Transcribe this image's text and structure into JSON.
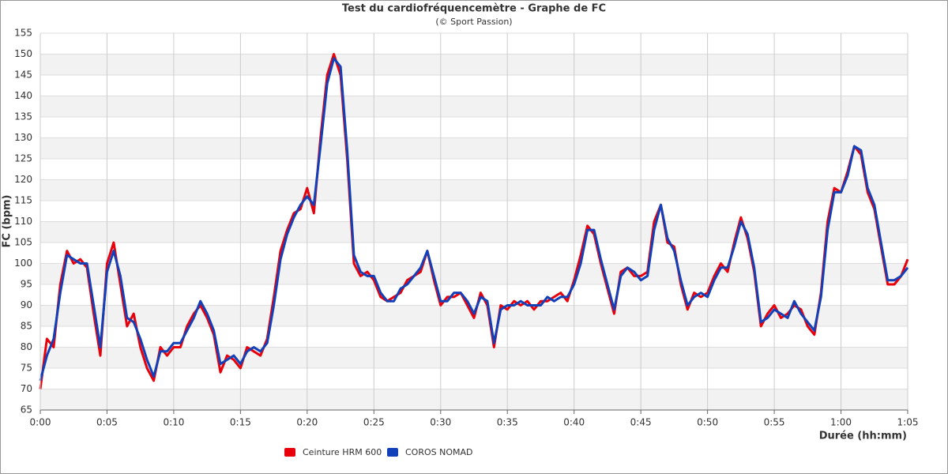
{
  "chart_data": {
    "type": "line",
    "title": "Test du cardiofréquencemètre - Graphe de FC",
    "subtitle": "(© Sport Passion)",
    "x_label": "Durée (hh:mm)",
    "y_label": "FC (bpm)",
    "x": [
      0,
      0.5,
      1,
      1.5,
      2,
      2.5,
      3,
      3.5,
      4,
      4.5,
      5,
      5.5,
      6,
      6.5,
      7,
      7.5,
      8,
      8.5,
      9,
      9.5,
      10,
      10.5,
      11,
      11.5,
      12,
      12.5,
      13,
      13.5,
      14,
      14.5,
      15,
      15.5,
      16,
      16.5,
      17,
      17.5,
      18,
      18.5,
      19,
      19.5,
      20,
      20.5,
      21,
      21.5,
      22,
      22.5,
      23,
      23.5,
      24,
      24.5,
      25,
      25.5,
      26,
      26.5,
      27,
      27.5,
      28,
      28.5,
      29,
      29.5,
      30,
      30.5,
      31,
      31.5,
      32,
      32.5,
      33,
      33.5,
      34,
      34.5,
      35,
      35.5,
      36,
      36.5,
      37,
      37.5,
      38,
      38.5,
      39,
      39.5,
      40,
      40.5,
      41,
      41.5,
      42,
      42.5,
      43,
      43.5,
      44,
      44.5,
      45,
      45.5,
      46,
      46.5,
      47,
      47.5,
      48,
      48.5,
      49,
      49.5,
      50,
      50.5,
      51,
      51.5,
      52,
      52.5,
      53,
      53.5,
      54,
      54.5,
      55,
      55.5,
      56,
      56.5,
      57,
      57.5,
      58,
      58.5,
      59,
      59.5,
      60,
      60.5,
      61,
      61.5,
      62,
      62.5,
      63,
      63.5,
      64,
      64.5,
      65
    ],
    "series": [
      {
        "name": "Ceinture HRM 600",
        "color": "#e8000b",
        "values": [
          70,
          82,
          80,
          95,
          103,
          100,
          101,
          99,
          88,
          78,
          100,
          105,
          95,
          85,
          88,
          80,
          75,
          72,
          80,
          78,
          80,
          80,
          85,
          88,
          90,
          87,
          83,
          74,
          78,
          77,
          75,
          80,
          79,
          78,
          82,
          92,
          103,
          108,
          112,
          113,
          118,
          112,
          130,
          145,
          150,
          145,
          125,
          100,
          97,
          98,
          96,
          92,
          91,
          92,
          93,
          96,
          97,
          98,
          103,
          96,
          90,
          92,
          92,
          93,
          90,
          87,
          93,
          90,
          80,
          90,
          89,
          91,
          90,
          91,
          89,
          91,
          91,
          92,
          93,
          91,
          96,
          102,
          109,
          107,
          100,
          94,
          88,
          98,
          99,
          97,
          97,
          98,
          110,
          114,
          105,
          104,
          95,
          89,
          93,
          92,
          93,
          97,
          100,
          98,
          105,
          111,
          106,
          98,
          85,
          88,
          90,
          87,
          88,
          90,
          89,
          85,
          83,
          93,
          110,
          118,
          117,
          122,
          128,
          126,
          117,
          113,
          104,
          95,
          95,
          97,
          101
        ]
      },
      {
        "name": "COROS NOMAD",
        "color": "#1240b8",
        "values": [
          72,
          78,
          82,
          93,
          102,
          101,
          100,
          100,
          90,
          80,
          98,
          103,
          97,
          87,
          86,
          82,
          77,
          73,
          79,
          79,
          81,
          81,
          84,
          87,
          91,
          88,
          84,
          76,
          77,
          78,
          76,
          79,
          80,
          79,
          81,
          90,
          101,
          107,
          111,
          114,
          116,
          114,
          128,
          143,
          149,
          147,
          127,
          102,
          98,
          97,
          97,
          93,
          91,
          91,
          94,
          95,
          97,
          99,
          103,
          97,
          91,
          91,
          93,
          93,
          91,
          88,
          92,
          91,
          81,
          89,
          90,
          90,
          91,
          90,
          90,
          90,
          92,
          91,
          92,
          92,
          95,
          100,
          108,
          108,
          101,
          95,
          89,
          97,
          99,
          98,
          96,
          97,
          108,
          114,
          106,
          103,
          96,
          90,
          92,
          93,
          92,
          96,
          99,
          99,
          104,
          110,
          107,
          99,
          86,
          87,
          89,
          88,
          87,
          91,
          88,
          86,
          84,
          92,
          108,
          117,
          117,
          121,
          128,
          127,
          118,
          114,
          105,
          96,
          96,
          97,
          99
        ]
      }
    ],
    "xlim": [
      0,
      65
    ],
    "xticks": [
      {
        "value": 0,
        "label": "0:00"
      },
      {
        "value": 5,
        "label": "0:05"
      },
      {
        "value": 10,
        "label": "0:10"
      },
      {
        "value": 15,
        "label": "0:15"
      },
      {
        "value": 20,
        "label": "0:20"
      },
      {
        "value": 25,
        "label": "0:25"
      },
      {
        "value": 30,
        "label": "0:30"
      },
      {
        "value": 35,
        "label": "0:35"
      },
      {
        "value": 40,
        "label": "0:40"
      },
      {
        "value": 45,
        "label": "0:45"
      },
      {
        "value": 50,
        "label": "0:50"
      },
      {
        "value": 55,
        "label": "0:55"
      },
      {
        "value": 60,
        "label": "1:00"
      },
      {
        "value": 65,
        "label": "1:05"
      }
    ],
    "ylim": [
      65,
      155
    ],
    "yticks": [
      65,
      70,
      75,
      80,
      85,
      90,
      95,
      100,
      105,
      110,
      115,
      120,
      125,
      130,
      135,
      140,
      145,
      150,
      155
    ],
    "grid": true,
    "legend": "bottom"
  }
}
